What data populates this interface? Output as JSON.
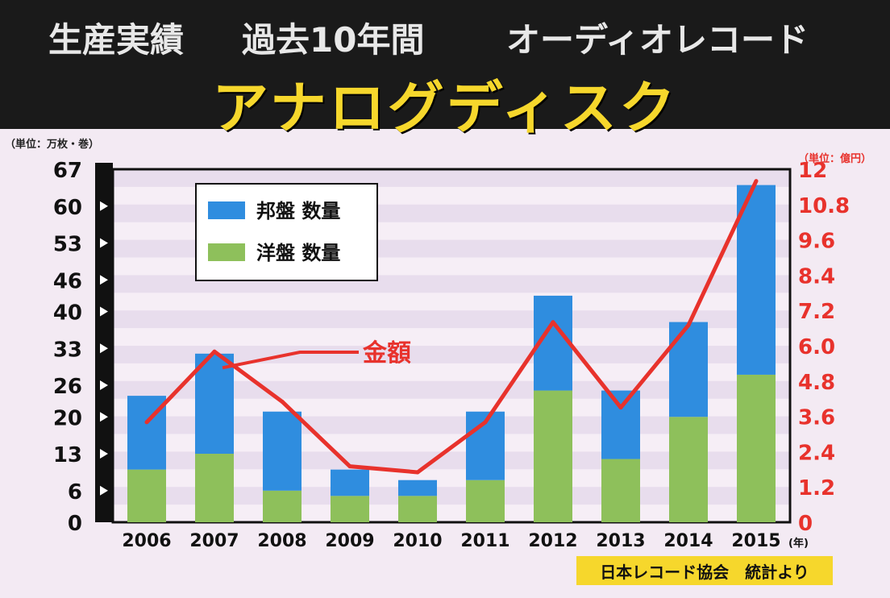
{
  "header": {
    "subtitle_left": "生産実績",
    "subtitle_mid": "過去10年間",
    "subtitle_right": "オーディオレコード",
    "title": "アナログディスク"
  },
  "units": {
    "left": "（単位：万枚・巻）",
    "right": "（単位：億円）"
  },
  "source": "日本レコード協会　統計より",
  "colors": {
    "domestic": "#2f8ddf",
    "foreign": "#8ec05b",
    "amount": "#e8322c",
    "banner_title": "#f6d72c",
    "stripe": "#ddd0e6"
  },
  "chart_data": {
    "type": "bar",
    "stacked": true,
    "categories": [
      "2006",
      "2007",
      "2008",
      "2009",
      "2010",
      "2011",
      "2012",
      "2013",
      "2014",
      "2015"
    ],
    "x_unit_label": "(年)",
    "series": [
      {
        "name": "洋盤 数量",
        "type": "bar",
        "axis": "left",
        "values": [
          10,
          13,
          6,
          5,
          5,
          8,
          25,
          12,
          20,
          28
        ]
      },
      {
        "name": "邦盤 数量",
        "type": "bar",
        "axis": "left",
        "values": [
          14,
          19,
          15,
          5,
          3,
          13,
          18,
          13,
          18,
          36
        ]
      },
      {
        "name": "金額",
        "type": "line",
        "axis": "right",
        "values": [
          3.4,
          5.8,
          4.1,
          1.9,
          1.7,
          3.4,
          6.8,
          3.9,
          6.7,
          11.6
        ]
      }
    ],
    "y_left": {
      "ylim": [
        0,
        67
      ],
      "ticks": [
        "0",
        "6",
        "13",
        "20",
        "26",
        "33",
        "40",
        "46",
        "53",
        "60",
        "67"
      ]
    },
    "y_right": {
      "ylim": [
        0,
        12
      ],
      "ticks": [
        "0",
        "1.2",
        "2.4",
        "3.6",
        "4.8",
        "6.0",
        "7.2",
        "8.4",
        "9.6",
        "10.8",
        "12"
      ]
    },
    "legend": {
      "placement": "top-left",
      "items": [
        "邦盤 数量",
        "洋盤 数量"
      ]
    },
    "annotation": "金額"
  }
}
